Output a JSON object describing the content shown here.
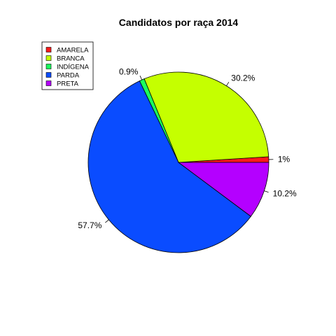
{
  "chart_data": {
    "type": "pie",
    "title": "Candidatos por raça 2014",
    "legend_position": "top-left",
    "categories": [
      "AMARELA",
      "BRANCA",
      "INDÍGENA",
      "PARDA",
      "PRETA"
    ],
    "values": [
      1.0,
      30.2,
      0.9,
      57.7,
      10.2
    ],
    "slice_labels": [
      "1%",
      "30.2%",
      "0.9%",
      "57.7%",
      "10.2%"
    ],
    "colors": [
      "#ff1a1a",
      "#c5ff00",
      "#1aff5e",
      "#0a4cff",
      "#b400ff"
    ]
  }
}
